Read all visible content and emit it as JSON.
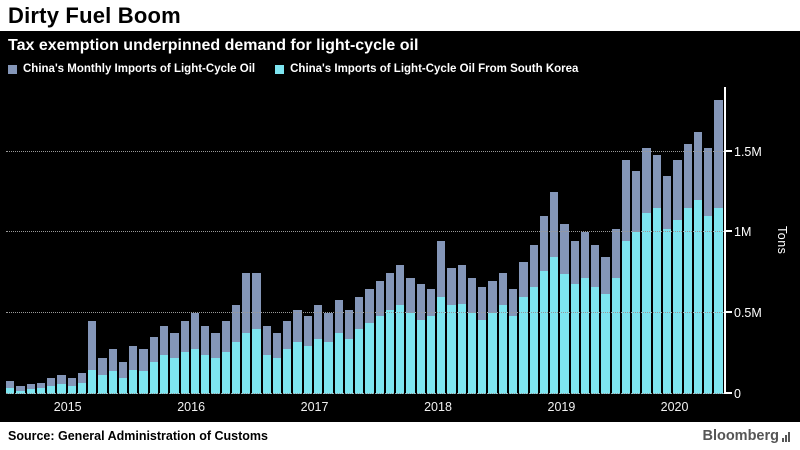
{
  "header": {
    "title": "Dirty Fuel Boom",
    "subtitle": "Tax exemption underpinned demand for light-cycle oil"
  },
  "legend": [
    {
      "label": "China's Monthly Imports of Light-Cycle Oil",
      "color": "#8496b8"
    },
    {
      "label": "China's Imports of Light-Cycle Oil From South Korea",
      "color": "#7ee5f0"
    }
  ],
  "footer": {
    "source": "Source: General Administration of Customs",
    "brand": "Bloomberg"
  },
  "colors": {
    "background": "#000000",
    "strip_background": "#ffffff",
    "gridline": "#9a9a9a",
    "axis_line": "#ffffff",
    "text": "#ffffff"
  },
  "chart_data": {
    "type": "bar",
    "title": "Dirty Fuel Boom",
    "subtitle": "Tax exemption underpinned demand for light-cycle oil",
    "xlabel": "",
    "ylabel": "Tons",
    "values_unit": "million tons",
    "frequency": "monthly",
    "x_start": "2015-01",
    "x_end": "2020-10",
    "x_years": [
      "2015",
      "2016",
      "2017",
      "2018",
      "2019",
      "2020"
    ],
    "ytick_labels": [
      "0",
      "0.5M",
      "1M",
      "1.5M"
    ],
    "ytick_values": [
      0,
      0.5,
      1.0,
      1.5
    ],
    "ylim": [
      0,
      1.9
    ],
    "grid": "dotted-horizontal",
    "legend_position": "top",
    "y_axis_side": "right",
    "series": [
      {
        "name": "China's Monthly Imports of Light-Cycle Oil",
        "color": "#8496b8",
        "values": [
          0.08,
          0.05,
          0.06,
          0.07,
          0.1,
          0.12,
          0.1,
          0.13,
          0.45,
          0.22,
          0.28,
          0.2,
          0.3,
          0.28,
          0.35,
          0.42,
          0.38,
          0.45,
          0.5,
          0.42,
          0.38,
          0.45,
          0.55,
          0.75,
          0.75,
          0.42,
          0.38,
          0.45,
          0.52,
          0.48,
          0.55,
          0.5,
          0.58,
          0.52,
          0.6,
          0.65,
          0.7,
          0.75,
          0.8,
          0.72,
          0.68,
          0.65,
          0.95,
          0.78,
          0.8,
          0.72,
          0.66,
          0.7,
          0.75,
          0.65,
          0.82,
          0.92,
          1.1,
          1.25,
          1.05,
          0.95,
          1.0,
          0.92,
          0.85,
          1.02,
          1.45,
          1.38,
          1.52,
          1.48,
          1.35,
          1.45,
          1.55,
          1.62,
          1.52,
          1.82
        ]
      },
      {
        "name": "China's Imports of Light-Cycle Oil From South Korea",
        "color": "#7ee5f0",
        "values": [
          0.04,
          0.02,
          0.03,
          0.04,
          0.05,
          0.06,
          0.05,
          0.07,
          0.15,
          0.12,
          0.14,
          0.1,
          0.15,
          0.14,
          0.2,
          0.24,
          0.22,
          0.26,
          0.28,
          0.24,
          0.22,
          0.26,
          0.32,
          0.38,
          0.4,
          0.24,
          0.22,
          0.28,
          0.32,
          0.3,
          0.34,
          0.32,
          0.38,
          0.34,
          0.4,
          0.44,
          0.48,
          0.52,
          0.55,
          0.5,
          0.46,
          0.48,
          0.6,
          0.55,
          0.56,
          0.5,
          0.46,
          0.5,
          0.55,
          0.48,
          0.6,
          0.66,
          0.76,
          0.85,
          0.74,
          0.68,
          0.72,
          0.66,
          0.62,
          0.72,
          0.95,
          1.0,
          1.12,
          1.15,
          1.02,
          1.08,
          1.15,
          1.2,
          1.1,
          1.15
        ]
      }
    ]
  }
}
